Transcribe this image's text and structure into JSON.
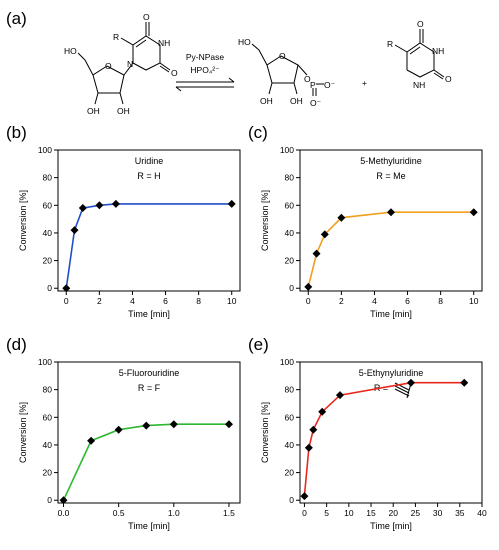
{
  "scheme": {
    "label": "(a)",
    "enzyme": "Py-NPase",
    "cofactor": "HPO₄²⁻",
    "plus": "+",
    "atoms": {
      "R": "R",
      "OH": "OH",
      "HO": "HO",
      "NH": "NH",
      "N": "N",
      "O": "O",
      "P": "P",
      "Ominus": "O⁻"
    }
  },
  "chart_data": [
    {
      "id": "b",
      "label": "(b)",
      "type": "line",
      "title": "Uridine",
      "subtitle": "R = H",
      "xlabel": "Time [min]",
      "ylabel": "Conversion [%]",
      "xlim": [
        -0.5,
        10.5
      ],
      "ylim": [
        -2,
        100
      ],
      "xticks": [
        0,
        2,
        4,
        6,
        8,
        10
      ],
      "yticks": [
        0,
        20,
        40,
        60,
        80,
        100
      ],
      "x": [
        0,
        0.5,
        1,
        2,
        3,
        10
      ],
      "y": [
        0,
        42,
        58,
        60,
        61,
        61
      ],
      "color": "#1f4fc9",
      "marker": "diamond"
    },
    {
      "id": "c",
      "label": "(c)",
      "type": "line",
      "title": "5-Methyluridine",
      "subtitle": "R = Me",
      "xlabel": "Time [min]",
      "ylabel": "Conversion [%]",
      "xlim": [
        -0.5,
        10.5
      ],
      "ylim": [
        -2,
        100
      ],
      "xticks": [
        0,
        2,
        4,
        6,
        8,
        10
      ],
      "yticks": [
        0,
        20,
        40,
        60,
        80,
        100
      ],
      "x": [
        0,
        0.5,
        1,
        2,
        5,
        10
      ],
      "y": [
        1,
        25,
        39,
        51,
        55,
        55
      ],
      "color": "#f0a020",
      "marker": "diamond"
    },
    {
      "id": "d",
      "label": "(d)",
      "type": "line",
      "title": "5-Fluorouridine",
      "subtitle": "R = F",
      "xlabel": "Time [min]",
      "ylabel": "Conversion [%]",
      "xlim": [
        -0.05,
        1.6
      ],
      "ylim": [
        -2,
        100
      ],
      "xticks": [
        0.0,
        0.5,
        1.0,
        1.5
      ],
      "xtick_labels": [
        "0.0",
        "0.5",
        "1.0",
        "1.5"
      ],
      "yticks": [
        0,
        20,
        40,
        60,
        80,
        100
      ],
      "x": [
        0,
        0.25,
        0.5,
        0.75,
        1.0,
        1.5
      ],
      "y": [
        0,
        43,
        51,
        54,
        55,
        55
      ],
      "color": "#2db82d",
      "marker": "diamond"
    },
    {
      "id": "e",
      "label": "(e)",
      "type": "line",
      "title": "5-Ethynyluridine",
      "subtitle": "R =",
      "xlabel": "Time [min]",
      "ylabel": "Conversion [%]",
      "xlim": [
        -1,
        40
      ],
      "ylim": [
        -2,
        100
      ],
      "xticks": [
        0,
        5,
        10,
        15,
        20,
        25,
        30,
        35,
        40
      ],
      "yticks": [
        0,
        20,
        40,
        60,
        80,
        100
      ],
      "x": [
        0,
        1,
        2,
        4,
        8,
        24,
        36
      ],
      "y": [
        3,
        38,
        51,
        64,
        76,
        85,
        85
      ],
      "color": "#e8281e",
      "marker": "diamond"
    }
  ]
}
